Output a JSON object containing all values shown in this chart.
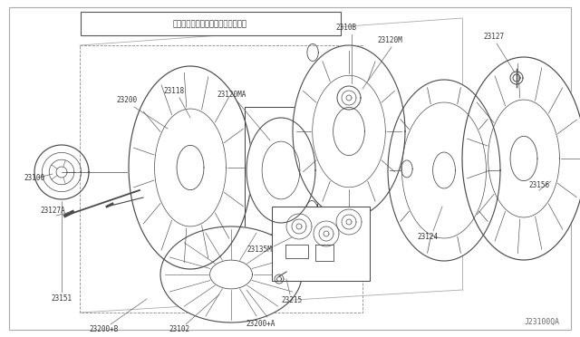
{
  "bg_color": "#ffffff",
  "line_color": "#4a4a4a",
  "text_color": "#333333",
  "diagram_id": "J23100QA",
  "note_jp": "(注)表記以外の構成部品は非販売",
  "parts": [
    "23100",
    "23102",
    "23118",
    "23120MA",
    "23120M",
    "2310B",
    "23127A",
    "23127",
    "23124",
    "23135M",
    "23151",
    "23156",
    "23200",
    "23200+A",
    "23200+B",
    "23215"
  ]
}
